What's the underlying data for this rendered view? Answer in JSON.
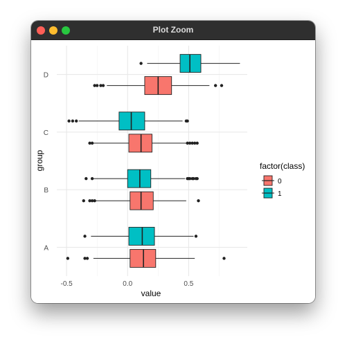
{
  "window": {
    "title": "Plot Zoom",
    "controls": {
      "close_color": "#ff5f57",
      "minimize_color": "#febc2e",
      "maximize_color": "#28c840"
    }
  },
  "chart_data": {
    "type": "boxplot",
    "orientation": "horizontal",
    "xlabel": "value",
    "ylabel": "group",
    "xlim": [
      -0.58,
      0.98
    ],
    "x_ticks": [
      -0.5,
      0.0,
      0.5
    ],
    "x_tick_labels": [
      "-0.5",
      "0.0",
      "0.5"
    ],
    "groups": [
      "A",
      "B",
      "C",
      "D"
    ],
    "legend": {
      "title": "factor(class)",
      "position": "right",
      "entries": [
        "0",
        "1"
      ]
    },
    "colors": {
      "0": "#f8766d",
      "1": "#00bfc4"
    },
    "grid": true,
    "boxes": [
      {
        "group": "A",
        "class": "0",
        "lower": -0.28,
        "q1": 0.02,
        "median": 0.13,
        "q3": 0.23,
        "upper": 0.55,
        "outliers": [
          -0.49,
          -0.35,
          -0.33,
          0.79
        ]
      },
      {
        "group": "A",
        "class": "1",
        "lower": -0.3,
        "q1": 0.01,
        "median": 0.12,
        "q3": 0.22,
        "upper": 0.54,
        "outliers": [
          -0.35,
          0.56
        ]
      },
      {
        "group": "B",
        "class": "0",
        "lower": -0.26,
        "q1": 0.02,
        "median": 0.11,
        "q3": 0.21,
        "upper": 0.48,
        "outliers": [
          -0.36,
          -0.31,
          -0.29,
          -0.27,
          0.58
        ]
      },
      {
        "group": "B",
        "class": "1",
        "lower": -0.28,
        "q1": 0.0,
        "median": 0.1,
        "q3": 0.19,
        "upper": 0.47,
        "outliers": [
          -0.34,
          -0.29,
          0.49,
          0.5,
          0.51,
          0.53,
          0.54,
          0.56,
          0.57
        ]
      },
      {
        "group": "C",
        "class": "0",
        "lower": -0.28,
        "q1": 0.01,
        "median": 0.11,
        "q3": 0.2,
        "upper": 0.48,
        "outliers": [
          -0.31,
          -0.29,
          0.49,
          0.51,
          0.53,
          0.55,
          0.57
        ]
      },
      {
        "group": "C",
        "class": "1",
        "lower": -0.4,
        "q1": -0.07,
        "median": 0.03,
        "q3": 0.14,
        "upper": 0.45,
        "outliers": [
          -0.48,
          -0.45,
          -0.42,
          0.48,
          0.49
        ]
      },
      {
        "group": "D",
        "class": "0",
        "lower": -0.17,
        "q1": 0.14,
        "median": 0.25,
        "q3": 0.36,
        "upper": 0.67,
        "outliers": [
          -0.27,
          -0.25,
          -0.22,
          -0.2,
          0.72,
          0.77
        ]
      },
      {
        "group": "D",
        "class": "1",
        "lower": 0.16,
        "q1": 0.43,
        "median": 0.51,
        "q3": 0.6,
        "upper": 0.92,
        "outliers": [
          0.11
        ]
      }
    ]
  }
}
